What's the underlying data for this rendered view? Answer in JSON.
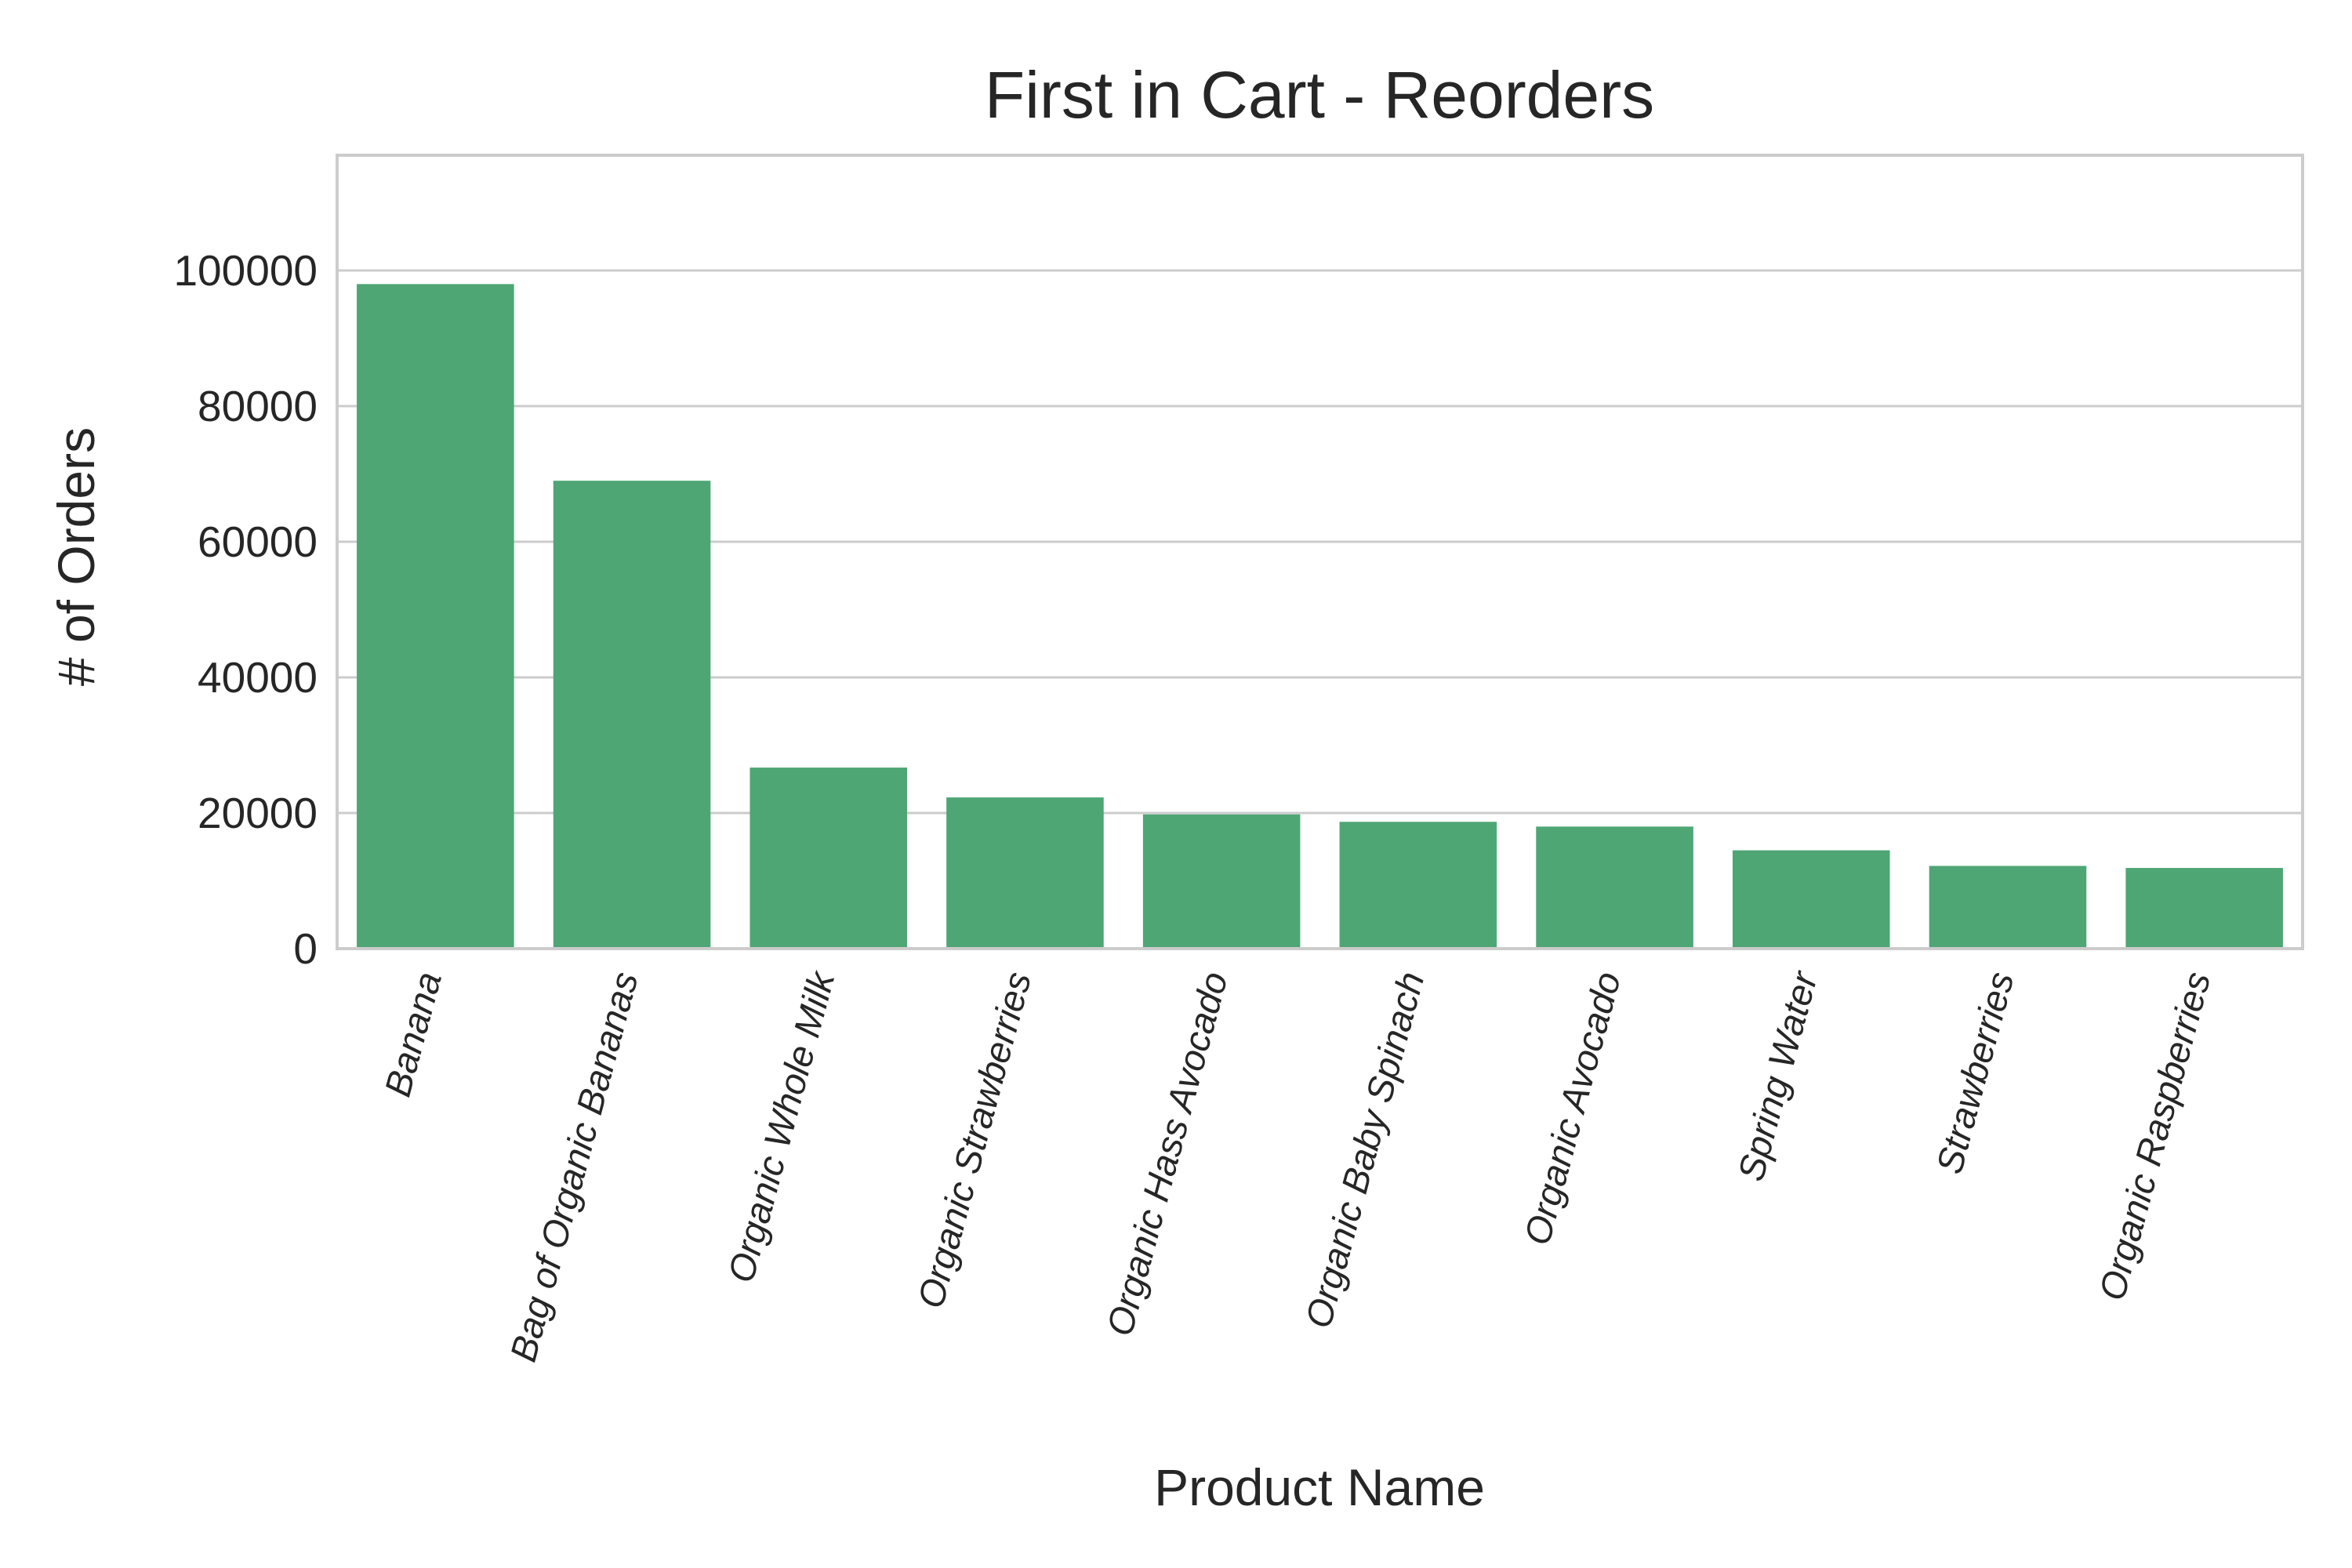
{
  "chart_data": {
    "type": "bar",
    "title": "First in Cart - Reorders",
    "xlabel": "Product Name",
    "ylabel": "# of Orders",
    "categories": [
      "Banana",
      "Bag of Organic Bananas",
      "Organic Whole Milk",
      "Organic Strawberries",
      "Organic Hass Avocado",
      "Organic Baby Spinach",
      "Organic Avocado",
      "Spring Water",
      "Strawberries",
      "Organic Raspberries"
    ],
    "values": [
      98000,
      69000,
      26700,
      22300,
      19800,
      18700,
      18000,
      14500,
      12200,
      11900
    ],
    "ylim": [
      0,
      117000
    ],
    "yticks": [
      0,
      20000,
      40000,
      60000,
      80000,
      100000
    ],
    "ytick_labels": [
      "0",
      "20000",
      "40000",
      "60000",
      "80000",
      "100000"
    ],
    "grid": "horizontal",
    "bar_color": "#4ea674",
    "grid_color": "#cccccc",
    "text_color": "#262626"
  }
}
